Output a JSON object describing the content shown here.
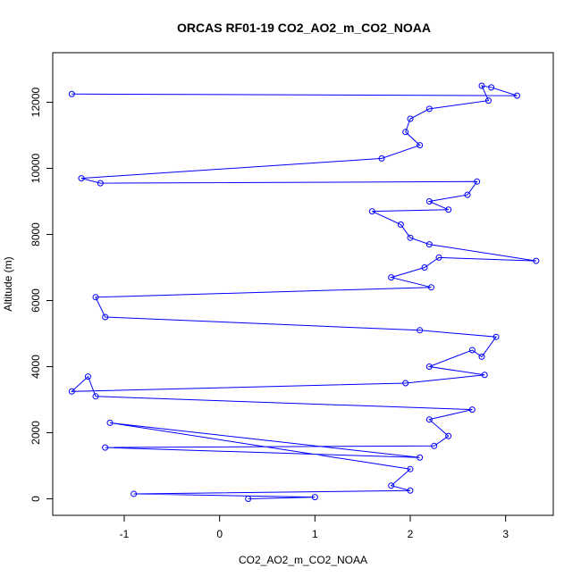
{
  "chart_data": {
    "type": "scatter",
    "title": "ORCAS RF01-19 CO2_AO2_m_CO2_NOAA",
    "xlabel": "CO2_AO2_m_CO2_NOAA",
    "ylabel": "Altitude (m)",
    "xlim": [
      -1.75,
      3.5
    ],
    "ylim": [
      -500,
      13500
    ],
    "x_ticks": [
      -1,
      0,
      1,
      2,
      3
    ],
    "y_ticks": [
      0,
      2000,
      4000,
      6000,
      8000,
      10000,
      12000
    ],
    "grid": false,
    "legend": "none",
    "marker": "open-circle",
    "connected_by_lines": true,
    "series_color": "#0000ff",
    "series": [
      {
        "values_note_excluded": true,
        "points": [
          [
            -1.55,
            12250
          ],
          [
            3.12,
            12200
          ],
          [
            2.85,
            12450
          ],
          [
            2.75,
            12500
          ],
          [
            2.82,
            12050
          ],
          [
            2.2,
            11800
          ],
          [
            2.0,
            11500
          ],
          [
            1.95,
            11100
          ],
          [
            2.1,
            10700
          ],
          [
            1.7,
            10300
          ],
          [
            -1.45,
            9700
          ],
          [
            -1.25,
            9550
          ],
          [
            2.7,
            9600
          ],
          [
            2.6,
            9200
          ],
          [
            2.2,
            9000
          ],
          [
            2.4,
            8750
          ],
          [
            1.6,
            8700
          ],
          [
            1.9,
            8300
          ],
          [
            2.0,
            7900
          ],
          [
            2.2,
            7700
          ],
          [
            3.32,
            7200
          ],
          [
            2.3,
            7300
          ],
          [
            2.15,
            7000
          ],
          [
            1.8,
            6700
          ],
          [
            2.22,
            6400
          ],
          [
            -1.3,
            6100
          ],
          [
            -1.2,
            5500
          ],
          [
            2.1,
            5100
          ],
          [
            2.9,
            4900
          ],
          [
            2.75,
            4300
          ],
          [
            2.65,
            4500
          ],
          [
            2.2,
            4000
          ],
          [
            2.78,
            3750
          ],
          [
            1.95,
            3500
          ],
          [
            -1.55,
            3250
          ],
          [
            -1.38,
            3700
          ],
          [
            -1.3,
            3100
          ],
          [
            2.65,
            2700
          ],
          [
            2.2,
            2400
          ],
          [
            2.4,
            1900
          ],
          [
            2.25,
            1600
          ],
          [
            -1.2,
            1550
          ],
          [
            2.1,
            1250
          ],
          [
            -1.15,
            2300
          ],
          [
            2.0,
            900
          ],
          [
            1.8,
            400
          ],
          [
            2.0,
            250
          ],
          [
            -0.9,
            150
          ],
          [
            1.0,
            50
          ],
          [
            0.3,
            0
          ]
        ]
      }
    ]
  }
}
